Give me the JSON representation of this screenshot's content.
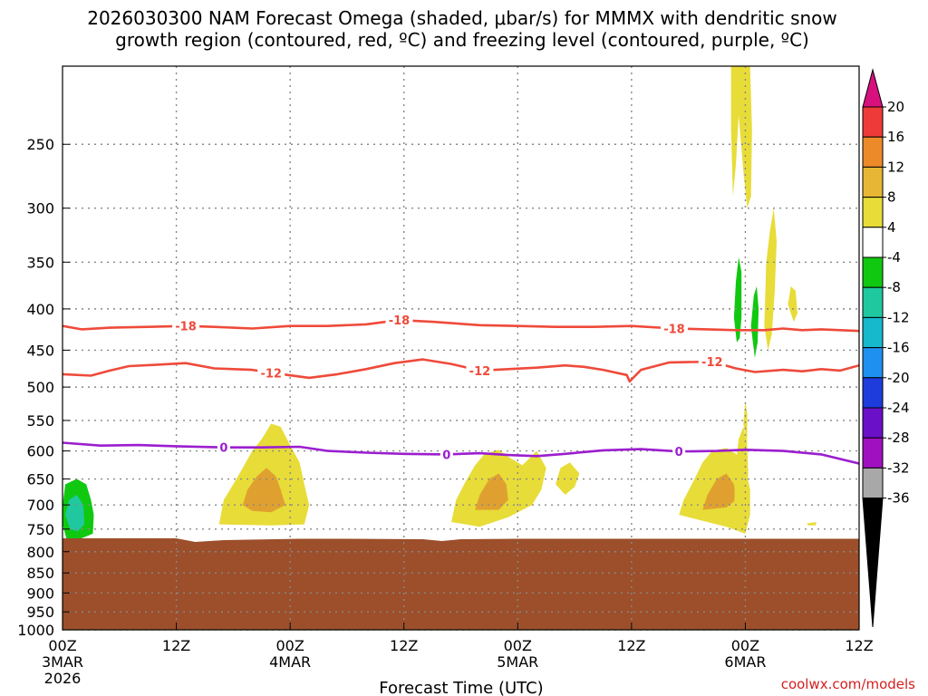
{
  "title_line1": "2026030300 NAM Forecast Omega (shaded, μbar/s) for MMMX with dendritic snow",
  "title_line2": "growth region (contoured, red, ºC) and freezing level (contoured, purple, ºC)",
  "xlabel": "Forecast Time (UTC)",
  "credit": "coolwx.com/models",
  "colors": {
    "terrain": "#9c4f2a",
    "red_contour": "#ef4a3a",
    "purple_contour": "#9b1ecf",
    "grid": "#888888",
    "yellow": "#e8dc38",
    "orange": "#e0a030",
    "green": "#10c810",
    "teal": "#20c8a0"
  },
  "chart_data": {
    "type": "heatmap",
    "x_range_hours": [
      0,
      84
    ],
    "y_range_hPa": [
      200,
      1000
    ],
    "y_scale": "pressure (log)",
    "grid": true,
    "x_ticks": [
      {
        "h": 0,
        "lines": [
          "00Z",
          "3MAR",
          "2026"
        ]
      },
      {
        "h": 12,
        "lines": [
          "12Z"
        ]
      },
      {
        "h": 24,
        "lines": [
          "00Z",
          "4MAR"
        ]
      },
      {
        "h": 36,
        "lines": [
          "12Z"
        ]
      },
      {
        "h": 48,
        "lines": [
          "00Z",
          "5MAR"
        ]
      },
      {
        "h": 60,
        "lines": [
          "12Z"
        ]
      },
      {
        "h": 72,
        "lines": [
          "00Z",
          "6MAR"
        ]
      },
      {
        "h": 84,
        "lines": [
          "12Z"
        ]
      }
    ],
    "y_ticks": [
      250,
      300,
      350,
      400,
      450,
      500,
      550,
      600,
      650,
      700,
      750,
      800,
      850,
      900,
      950,
      1000
    ],
    "colorbar": {
      "labels": [
        "20",
        "16",
        "12",
        "8",
        "4",
        "-4",
        "-8",
        "-12",
        "-16",
        "-20",
        "-24",
        "-28",
        "-32",
        "-36"
      ],
      "colors": [
        "#d8107e",
        "#ef3a3a",
        "#ec8a2a",
        "#e6b634",
        "#e8dc38",
        "#ffffff",
        "#10c810",
        "#20c8a0",
        "#16b8cc",
        "#1e90f0",
        "#1e3cdc",
        "#6a10c8",
        "#a010c0",
        "#a8a8a8",
        "#000000"
      ]
    },
    "contours": [
      {
        "name": "-18",
        "color": "red",
        "label_hours": [
          13,
          35.5,
          64.5
        ],
        "points": [
          [
            0,
            420
          ],
          [
            2,
            424
          ],
          [
            5,
            422
          ],
          [
            9,
            421
          ],
          [
            13,
            420
          ],
          [
            16,
            421
          ],
          [
            20,
            423
          ],
          [
            24,
            420
          ],
          [
            28,
            420
          ],
          [
            32,
            418
          ],
          [
            35.5,
            413
          ],
          [
            39,
            415
          ],
          [
            44,
            419
          ],
          [
            48,
            420
          ],
          [
            52,
            421
          ],
          [
            56,
            421
          ],
          [
            60,
            420
          ],
          [
            64.5,
            423
          ],
          [
            68,
            424
          ],
          [
            71,
            425
          ],
          [
            74,
            425
          ],
          [
            76,
            423
          ],
          [
            78,
            425
          ],
          [
            80,
            424
          ],
          [
            84,
            426
          ]
        ]
      },
      {
        "name": "-12",
        "color": "red",
        "label_hours": [
          22,
          44,
          68.5
        ],
        "points": [
          [
            0,
            482
          ],
          [
            3,
            484
          ],
          [
            5,
            477
          ],
          [
            7,
            471
          ],
          [
            10,
            469
          ],
          [
            13,
            467
          ],
          [
            16,
            474
          ],
          [
            20,
            476
          ],
          [
            22,
            480
          ],
          [
            26,
            487
          ],
          [
            29,
            482
          ],
          [
            32,
            475
          ],
          [
            35,
            467
          ],
          [
            38,
            462
          ],
          [
            41,
            468
          ],
          [
            44,
            477
          ],
          [
            47,
            475
          ],
          [
            50,
            473
          ],
          [
            53,
            470
          ],
          [
            55,
            472
          ],
          [
            57,
            476
          ],
          [
            59.5,
            483
          ],
          [
            59.8,
            492
          ],
          [
            61,
            476
          ],
          [
            64,
            466
          ],
          [
            68.5,
            465
          ],
          [
            71,
            474
          ],
          [
            73,
            479
          ],
          [
            76,
            476
          ],
          [
            78,
            478
          ],
          [
            80,
            475
          ],
          [
            82,
            477
          ],
          [
            84,
            470
          ]
        ]
      },
      {
        "name": "0",
        "color": "purple",
        "label_hours": [
          17,
          40.5,
          65
        ],
        "points": [
          [
            0,
            586
          ],
          [
            4,
            591
          ],
          [
            8,
            590
          ],
          [
            12,
            592
          ],
          [
            17,
            594
          ],
          [
            21,
            594
          ],
          [
            25,
            593
          ],
          [
            28,
            600
          ],
          [
            32,
            603
          ],
          [
            36,
            605
          ],
          [
            40.5,
            606
          ],
          [
            44,
            604
          ],
          [
            47,
            607
          ],
          [
            50,
            609
          ],
          [
            53,
            605
          ],
          [
            57,
            599
          ],
          [
            61,
            597
          ],
          [
            65,
            601
          ],
          [
            69,
            600
          ],
          [
            72,
            598
          ],
          [
            76,
            600
          ],
          [
            80,
            606
          ],
          [
            84,
            622
          ]
        ]
      }
    ],
    "omega_regions": [
      {
        "value_band": "4 to 8",
        "color": "yellow",
        "points": [
          [
            16.5,
            740
          ],
          [
            17,
            690
          ],
          [
            18,
            660
          ],
          [
            19,
            630
          ],
          [
            20,
            600
          ],
          [
            21,
            580
          ],
          [
            22,
            555
          ],
          [
            23,
            560
          ],
          [
            24,
            590
          ],
          [
            25,
            620
          ],
          [
            25.5,
            660
          ],
          [
            26,
            700
          ],
          [
            25.5,
            740
          ],
          [
            22,
            742
          ]
        ]
      },
      {
        "value_band": "8 to 12",
        "color": "orange",
        "points": [
          [
            19,
            700
          ],
          [
            19.5,
            670
          ],
          [
            20.5,
            645
          ],
          [
            21.5,
            630
          ],
          [
            22.5,
            645
          ],
          [
            23,
            670
          ],
          [
            23.5,
            700
          ],
          [
            22,
            715
          ],
          [
            20,
            712
          ]
        ]
      },
      {
        "value_band": "4 to 8",
        "color": "yellow",
        "points": [
          [
            41,
            735
          ],
          [
            41.5,
            690
          ],
          [
            42.5,
            655
          ],
          [
            43.5,
            625
          ],
          [
            44.5,
            605
          ],
          [
            46,
            598
          ],
          [
            47,
            610
          ],
          [
            48.5,
            625
          ],
          [
            50,
            600
          ],
          [
            51,
            630
          ],
          [
            50.5,
            670
          ],
          [
            49.5,
            700
          ],
          [
            47,
            725
          ],
          [
            44,
            745
          ]
        ]
      },
      {
        "value_band": "8 to 12",
        "color": "orange",
        "points": [
          [
            43.5,
            710
          ],
          [
            44,
            680
          ],
          [
            45,
            650
          ],
          [
            46,
            640
          ],
          [
            46.8,
            660
          ],
          [
            47,
            690
          ],
          [
            46,
            710
          ]
        ]
      },
      {
        "value_band": "4 to 8",
        "color": "yellow",
        "points": [
          [
            52,
            660
          ],
          [
            52.5,
            630
          ],
          [
            53.5,
            620
          ],
          [
            54.5,
            640
          ],
          [
            54,
            665
          ],
          [
            53,
            680
          ]
        ]
      },
      {
        "value_band": "4 to 8",
        "color": "yellow",
        "points": [
          [
            65,
            720
          ],
          [
            65.5,
            690
          ],
          [
            66.5,
            655
          ],
          [
            67.5,
            620
          ],
          [
            68.5,
            600
          ],
          [
            70,
            595
          ],
          [
            71,
            605
          ],
          [
            72,
            630
          ],
          [
            72.5,
            670
          ],
          [
            72.5,
            720
          ],
          [
            72,
            760
          ],
          [
            70,
            745
          ],
          [
            67,
            730
          ]
        ]
      },
      {
        "value_band": "8 to 12",
        "color": "orange",
        "points": [
          [
            67.5,
            710
          ],
          [
            68,
            680
          ],
          [
            69,
            650
          ],
          [
            70,
            640
          ],
          [
            70.8,
            660
          ],
          [
            71,
            690
          ],
          [
            70,
            705
          ]
        ]
      },
      {
        "value_band": "4 to 8",
        "color": "yellow",
        "points": [
          [
            70.8,
            710
          ],
          [
            71,
            620
          ],
          [
            71.3,
            580
          ],
          [
            71.8,
            560
          ],
          [
            72.2,
            590
          ],
          [
            72.3,
            640
          ],
          [
            72,
            700
          ]
        ]
      },
      {
        "value_band": "4 to 8",
        "color": "yellow",
        "points": [
          [
            71.8,
            555
          ],
          [
            72,
            520
          ],
          [
            72.2,
            540
          ],
          [
            72.2,
            590
          ]
        ]
      },
      {
        "value_band": "4 to 8",
        "color": "yellow",
        "points": [
          [
            70.5,
            240
          ],
          [
            70.5,
            200
          ],
          [
            72.5,
            200
          ],
          [
            72.7,
            240
          ],
          [
            72.6,
            290
          ],
          [
            72.2,
            300
          ],
          [
            71.8,
            270
          ],
          [
            71.3,
            230
          ],
          [
            71,
            265
          ],
          [
            70.7,
            290
          ]
        ]
      },
      {
        "value_band": "4 to 8",
        "color": "yellow",
        "points": [
          [
            74,
            420
          ],
          [
            74.2,
            350
          ],
          [
            74.6,
            320
          ],
          [
            75,
            300
          ],
          [
            75.3,
            330
          ],
          [
            75.1,
            380
          ],
          [
            74.8,
            430
          ],
          [
            74.4,
            450
          ]
        ]
      },
      {
        "value_band": "4 to 8",
        "color": "yellow",
        "points": [
          [
            76.5,
            395
          ],
          [
            76.8,
            375
          ],
          [
            77.3,
            380
          ],
          [
            77.5,
            405
          ],
          [
            77.1,
            415
          ]
        ]
      },
      {
        "value_band": "4 to 8",
        "color": "yellow",
        "points": [
          [
            78.5,
            738
          ],
          [
            79.5,
            735
          ],
          [
            79.4,
            742
          ],
          [
            78.6,
            742
          ]
        ]
      },
      {
        "value_band": "-8 to -4",
        "color": "green",
        "points": [
          [
            70.8,
            410
          ],
          [
            71,
            370
          ],
          [
            71.3,
            345
          ],
          [
            71.6,
            360
          ],
          [
            71.6,
            410
          ],
          [
            71.4,
            435
          ],
          [
            71.1,
            440
          ]
        ]
      },
      {
        "value_band": "-8 to -4",
        "color": "green",
        "points": [
          [
            72.6,
            420
          ],
          [
            72.9,
            385
          ],
          [
            73.2,
            375
          ],
          [
            73.4,
            400
          ],
          [
            73.3,
            440
          ],
          [
            73,
            460
          ],
          [
            72.8,
            440
          ]
        ]
      },
      {
        "value_band": "-8 to -4",
        "color": "green",
        "points": [
          [
            0,
            740
          ],
          [
            0,
            700
          ],
          [
            0.3,
            660
          ],
          [
            1.5,
            650
          ],
          [
            2.5,
            660
          ],
          [
            3,
            690
          ],
          [
            3.3,
            720
          ],
          [
            3.2,
            760
          ],
          [
            2,
            770
          ],
          [
            0.4,
            770
          ]
        ]
      },
      {
        "value_band": "-12 to -8",
        "color": "teal",
        "points": [
          [
            0.3,
            720
          ],
          [
            0.7,
            690
          ],
          [
            1.5,
            680
          ],
          [
            2.2,
            700
          ],
          [
            2.3,
            740
          ],
          [
            1.6,
            755
          ],
          [
            0.8,
            750
          ]
        ]
      }
    ],
    "terrain_top": [
      [
        0,
        770
      ],
      [
        12,
        770
      ],
      [
        14,
        778
      ],
      [
        17,
        774
      ],
      [
        25,
        771
      ],
      [
        30,
        771
      ],
      [
        38,
        772
      ],
      [
        40,
        776
      ],
      [
        42,
        772
      ],
      [
        48,
        771
      ],
      [
        60,
        771
      ],
      [
        84,
        771
      ]
    ]
  }
}
